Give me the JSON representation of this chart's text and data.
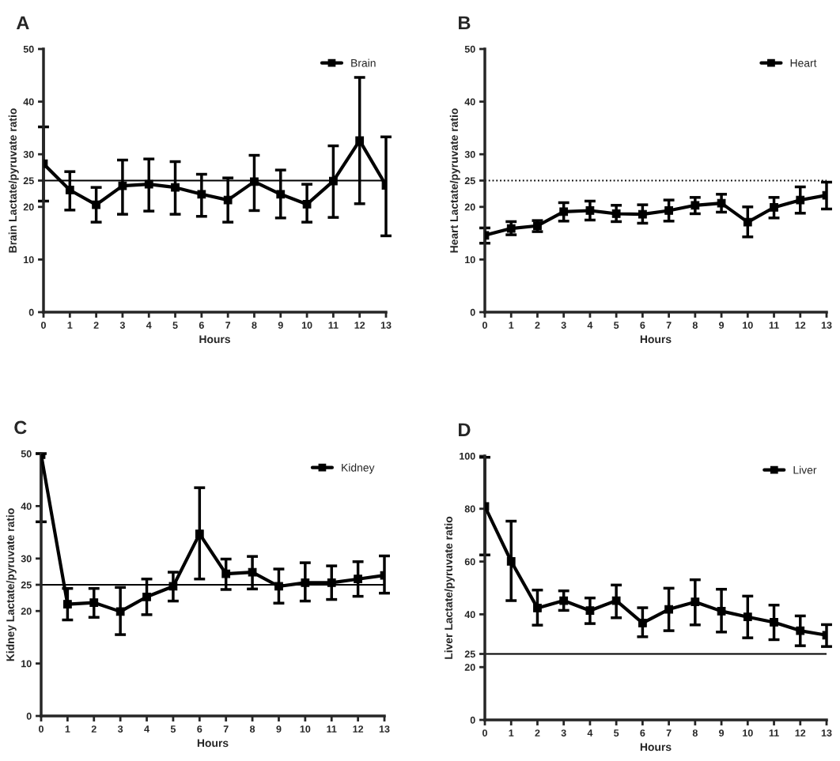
{
  "chart_data": [
    {
      "type": "line",
      "title": "A",
      "xlabel": "Hours",
      "ylabel": "Brain Lactate/pyruvate ratio",
      "x": [
        0,
        1,
        2,
        3,
        4,
        5,
        6,
        7,
        8,
        9,
        10,
        11,
        12,
        13
      ],
      "xlim": [
        0,
        13
      ],
      "xticks": [
        0,
        1,
        2,
        3,
        4,
        5,
        6,
        7,
        8,
        9,
        10,
        11,
        12,
        13
      ],
      "ylim": [
        0,
        50
      ],
      "yticks": [
        0,
        10,
        20,
        25,
        30,
        40,
        50
      ],
      "legend": "top right",
      "marker": "square",
      "line_style": "solid",
      "series": [
        {
          "name": "Brain",
          "color": "#000000",
          "values": [
            28.2,
            23.2,
            20.4,
            24,
            24.3,
            23.7,
            22.4,
            21.3,
            24.8,
            22.4,
            20.5,
            24.9,
            32.6,
            24.1
          ],
          "errors": [
            [
              21.1,
              35.2
            ],
            [
              19.4,
              26.7
            ],
            [
              17.1,
              23.7
            ],
            [
              18.6,
              28.9
            ],
            [
              19.2,
              29.1
            ],
            [
              18.6,
              28.6
            ],
            [
              18.2,
              26.2
            ],
            [
              17.1,
              25.5
            ],
            [
              19.3,
              29.8
            ],
            [
              17.9,
              27
            ],
            [
              17.1,
              24.3
            ],
            [
              18,
              31.6
            ],
            [
              20.6,
              44.6
            ],
            [
              14.5,
              33.3
            ]
          ]
        }
      ],
      "ref_lines": [
        {
          "axis": "y",
          "value": 25,
          "color": "#000000",
          "line_style": "solid"
        }
      ]
    },
    {
      "type": "line",
      "title": "B",
      "xlabel": "Hours",
      "ylabel": "Heart Lactate/pyruvate ratio",
      "x": [
        0,
        1,
        2,
        3,
        4,
        5,
        6,
        7,
        8,
        9,
        10,
        11,
        12,
        13
      ],
      "xlim": [
        0,
        13
      ],
      "xticks": [
        0,
        1,
        2,
        3,
        4,
        5,
        6,
        7,
        8,
        9,
        10,
        11,
        12,
        13
      ],
      "ylim": [
        0,
        50
      ],
      "yticks": [
        0,
        10,
        20,
        25,
        30,
        40,
        50
      ],
      "legend": "top right",
      "marker": "square",
      "line_style": "solid",
      "series": [
        {
          "name": "Heart",
          "color": "#000000",
          "values": [
            14.6,
            15.9,
            16.4,
            19.1,
            19.3,
            18.7,
            18.6,
            19.3,
            20.3,
            20.7,
            17.1,
            19.9,
            21.3,
            22.2
          ],
          "errors": [
            [
              13.1,
              16
            ],
            [
              14.7,
              17.2
            ],
            [
              15.3,
              17.4
            ],
            [
              17.3,
              20.8
            ],
            [
              17.5,
              21.1
            ],
            [
              17.2,
              20.3
            ],
            [
              16.9,
              20.4
            ],
            [
              17.3,
              21.3
            ],
            [
              18.7,
              21.8
            ],
            [
              19,
              22.4
            ],
            [
              14.3,
              20
            ],
            [
              17.9,
              21.8
            ],
            [
              18.8,
              23.8
            ],
            [
              19.6,
              24.7
            ]
          ]
        }
      ],
      "ref_lines": [
        {
          "axis": "y",
          "value": 25,
          "color": "#000000",
          "line_style": "dotted"
        }
      ]
    },
    {
      "type": "line",
      "title": "C",
      "xlabel": "Hours",
      "ylabel": "Kidney Lactate/pyruvate ratio",
      "x": [
        0,
        1,
        2,
        3,
        4,
        5,
        6,
        7,
        8,
        9,
        10,
        11,
        12,
        13
      ],
      "xlim": [
        0,
        13
      ],
      "xticks": [
        0,
        1,
        2,
        3,
        4,
        5,
        6,
        7,
        8,
        9,
        10,
        11,
        12,
        13
      ],
      "ylim": [
        0,
        50
      ],
      "yticks": [
        0,
        10,
        20,
        25,
        30,
        40,
        50
      ],
      "legend": "top right",
      "marker": "square",
      "line_style": "solid",
      "series": [
        {
          "name": "Kidney",
          "color": "#000000",
          "values": [
            49.8,
            21.3,
            21.6,
            19.9,
            22.7,
            24.7,
            34.7,
            27.1,
            27.4,
            24.7,
            25.4,
            25.4,
            26.1,
            26.8
          ],
          "errors": [
            [
              37,
              50
            ],
            [
              18.3,
              24.3
            ],
            [
              18.8,
              24.3
            ],
            [
              15.5,
              24.5
            ],
            [
              19.3,
              26.1
            ],
            [
              21.9,
              27.4
            ],
            [
              26.1,
              43.5
            ],
            [
              24.1,
              29.9
            ],
            [
              24.2,
              30.4
            ],
            [
              21.5,
              28
            ],
            [
              21.9,
              29.2
            ],
            [
              22.2,
              28.6
            ],
            [
              22.8,
              29.4
            ],
            [
              23.4,
              30.5
            ]
          ]
        }
      ],
      "ref_lines": [
        {
          "axis": "y",
          "value": 25,
          "color": "#000000",
          "line_style": "solid"
        }
      ]
    },
    {
      "type": "line",
      "title": "D",
      "xlabel": "Hours",
      "ylabel": "Liver Lactate/pyruvate ratio",
      "x": [
        0,
        1,
        2,
        3,
        4,
        5,
        6,
        7,
        8,
        9,
        10,
        11,
        12,
        13
      ],
      "xlim": [
        0,
        13
      ],
      "xticks": [
        0,
        1,
        2,
        3,
        4,
        5,
        6,
        7,
        8,
        9,
        10,
        11,
        12,
        13
      ],
      "ylim": [
        0,
        100
      ],
      "yticks": [
        0,
        20,
        25,
        40,
        60,
        80,
        100
      ],
      "legend": "top right",
      "marker": "square",
      "line_style": "solid",
      "series": [
        {
          "name": "Liver",
          "color": "#000000",
          "values": [
            80.9,
            60.1,
            42.4,
            45.2,
            41.4,
            45.2,
            36.7,
            41.9,
            44.7,
            41.2,
            39,
            37,
            33.8,
            32.1
          ],
          "errors": [
            [
              62.5,
              99.5
            ],
            [
              45.2,
              75.3
            ],
            [
              35.9,
              49.2
            ],
            [
              41.5,
              48.9
            ],
            [
              36.5,
              46.2
            ],
            [
              38.7,
              51.1
            ],
            [
              31.5,
              42.5
            ],
            [
              33.8,
              49.9
            ],
            [
              36,
              53.1
            ],
            [
              33.3,
              49.5
            ],
            [
              31.1,
              46.9
            ],
            [
              30.4,
              43.5
            ],
            [
              28.1,
              39.4
            ],
            [
              27.8,
              36.1
            ]
          ]
        }
      ],
      "ref_lines": [
        {
          "axis": "y",
          "value": 25,
          "color": "#000000",
          "line_style": "solid"
        }
      ]
    }
  ]
}
